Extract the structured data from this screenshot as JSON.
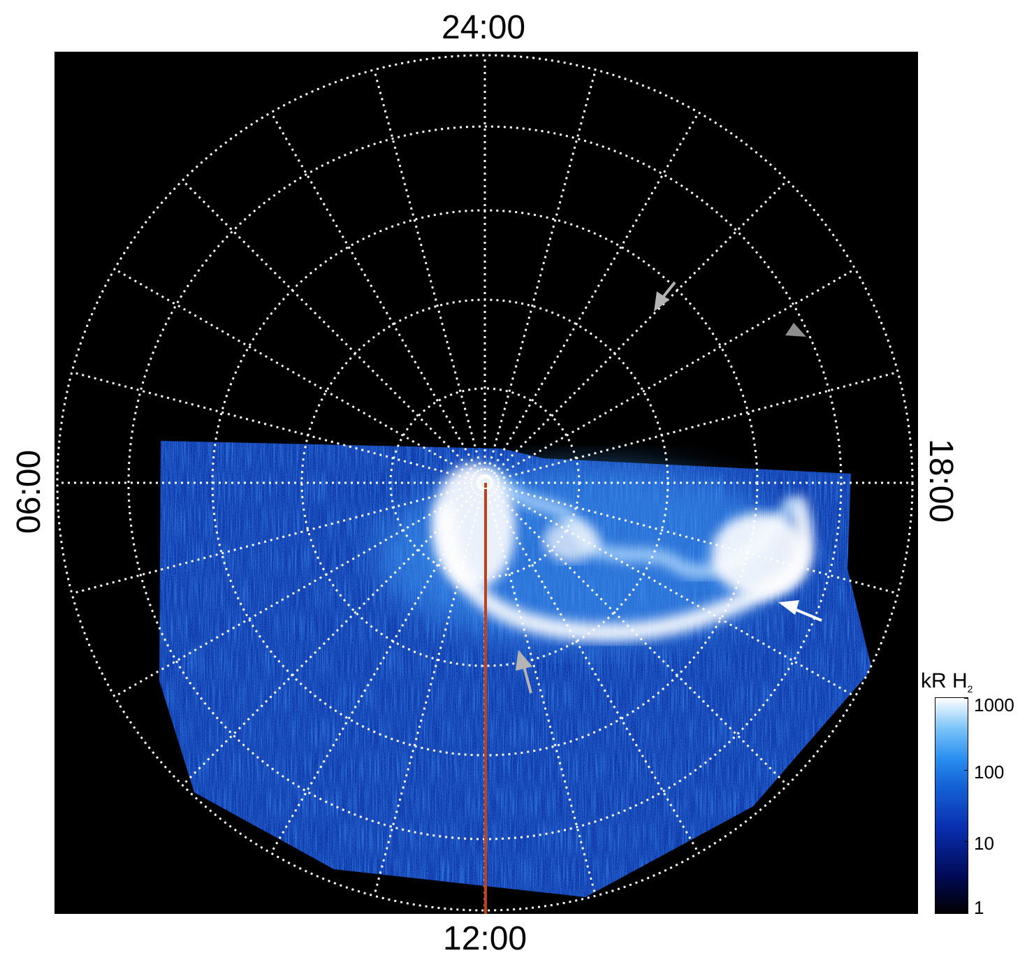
{
  "figure": {
    "time_labels": {
      "top": "24:00",
      "bottom": "12:00",
      "left": "06:00",
      "right": "18:00"
    },
    "colorbar": {
      "title_main": "kR H",
      "title_sub": "2",
      "ticks": [
        "1000",
        "100",
        "10",
        "1"
      ],
      "scale": "log",
      "colors": [
        "#000000",
        "#000a5a",
        "#1565d8",
        "#ffffff"
      ]
    },
    "colors": {
      "background": "#000000",
      "grid": "#ffffff",
      "meridian_line": "#c0401a",
      "arrow_white": "#ffffff",
      "arrow_gray": "#b4b4b4"
    },
    "annotations": {
      "arrows": [
        {
          "name": "gray-arrow-upper",
          "color": "gray"
        },
        {
          "name": "gray-arrowhead-right",
          "color": "gray"
        },
        {
          "name": "white-arrow-right",
          "color": "white"
        },
        {
          "name": "gray-arrow-lower",
          "color": "gray"
        }
      ]
    }
  }
}
